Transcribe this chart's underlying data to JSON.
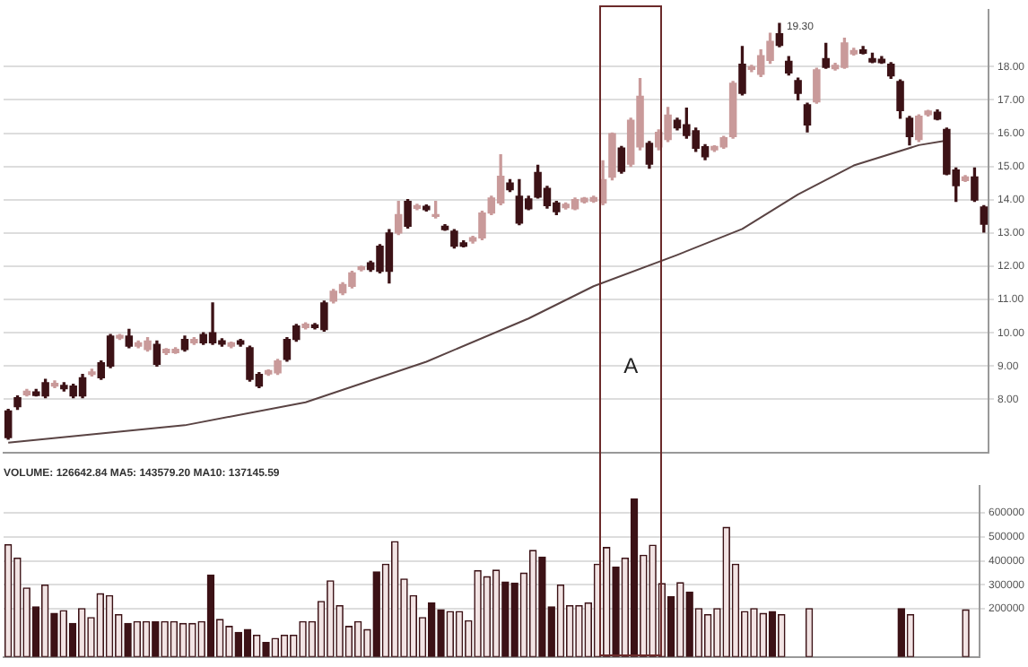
{
  "chart_data": [
    {
      "type": "candlestick",
      "categories": [
        null,
        null,
        null,
        null,
        null,
        null,
        null,
        null,
        null,
        null,
        null,
        null,
        null,
        null,
        null,
        null,
        null,
        null,
        null,
        null,
        null,
        null,
        null,
        null,
        null,
        null,
        null,
        null,
        null,
        null,
        null,
        null,
        null,
        null,
        null,
        null,
        null,
        null,
        null,
        null,
        null,
        null,
        null,
        null,
        null,
        null,
        null,
        null,
        null,
        null,
        null,
        null,
        null,
        null,
        null,
        null,
        null,
        null,
        null,
        null,
        null,
        null,
        null,
        null,
        null,
        null,
        null,
        null,
        null,
        null,
        null,
        null,
        null,
        null,
        null,
        null,
        null,
        null,
        null,
        null,
        null,
        null,
        null,
        null,
        null,
        null,
        null,
        null,
        null,
        null,
        null,
        null,
        null,
        null,
        null,
        null,
        null,
        null,
        null,
        null,
        null,
        null,
        null,
        null,
        null,
        null
      ],
      "ohlc": [
        [
          7.65,
          7.7,
          6.8,
          6.85
        ],
        [
          8.05,
          8.1,
          7.7,
          7.78
        ],
        [
          8.14,
          8.3,
          8.1,
          8.24
        ],
        [
          8.22,
          8.3,
          8.1,
          8.12
        ],
        [
          8.5,
          8.6,
          8.05,
          8.1
        ],
        [
          8.4,
          8.55,
          8.35,
          8.48
        ],
        [
          8.42,
          8.5,
          8.25,
          8.32
        ],
        [
          8.4,
          8.45,
          8.05,
          8.1
        ],
        [
          8.65,
          8.75,
          8.05,
          8.1
        ],
        [
          8.75,
          8.9,
          8.7,
          8.82
        ],
        [
          9.1,
          9.15,
          8.6,
          8.65
        ],
        [
          9.9,
          9.95,
          8.95,
          9.0
        ],
        [
          9.84,
          9.95,
          9.8,
          9.92
        ],
        [
          9.9,
          10.1,
          9.55,
          9.6
        ],
        [
          9.6,
          9.75,
          9.55,
          9.7
        ],
        [
          9.5,
          9.85,
          9.45,
          9.75
        ],
        [
          9.65,
          9.75,
          9.0,
          9.05
        ],
        [
          9.4,
          9.52,
          9.35,
          9.5
        ],
        [
          9.4,
          9.55,
          9.38,
          9.5
        ],
        [
          9.8,
          9.9,
          9.45,
          9.5
        ],
        [
          9.7,
          9.85,
          9.65,
          9.8
        ],
        [
          9.95,
          10.0,
          9.65,
          9.7
        ],
        [
          10.0,
          10.9,
          9.65,
          9.7
        ],
        [
          9.76,
          9.82,
          9.6,
          9.66
        ],
        [
          9.6,
          9.72,
          9.55,
          9.7
        ],
        [
          9.76,
          9.8,
          9.6,
          9.66
        ],
        [
          9.55,
          9.6,
          8.55,
          8.6
        ],
        [
          8.75,
          8.8,
          8.35,
          8.4
        ],
        [
          8.76,
          8.88,
          8.72,
          8.86
        ],
        [
          8.8,
          9.2,
          8.75,
          9.15
        ],
        [
          9.8,
          9.85,
          9.15,
          9.2
        ],
        [
          10.2,
          10.25,
          9.75,
          9.8
        ],
        [
          10.16,
          10.3,
          10.12,
          10.26
        ],
        [
          10.24,
          10.28,
          10.12,
          10.16
        ],
        [
          10.9,
          10.95,
          10.05,
          10.1
        ],
        [
          10.95,
          11.3,
          10.9,
          11.25
        ],
        [
          11.2,
          11.5,
          11.15,
          11.45
        ],
        [
          11.4,
          11.85,
          11.35,
          11.8
        ],
        [
          11.9,
          12.0,
          11.86,
          11.98
        ],
        [
          12.1,
          12.15,
          11.85,
          11.9
        ],
        [
          12.6,
          12.65,
          11.8,
          11.85
        ],
        [
          13.0,
          13.1,
          11.5,
          11.85
        ],
        [
          13.0,
          13.95,
          12.95,
          13.55
        ],
        [
          13.95,
          14.0,
          13.15,
          13.2
        ],
        [
          13.74,
          13.86,
          13.7,
          13.82
        ],
        [
          13.8,
          13.84,
          13.66,
          13.7
        ],
        [
          13.5,
          13.95,
          13.45,
          13.55
        ],
        [
          13.2,
          13.25,
          13.08,
          13.1
        ],
        [
          13.05,
          13.1,
          12.55,
          12.6
        ],
        [
          12.7,
          12.76,
          12.58,
          12.6
        ],
        [
          12.76,
          12.9,
          12.7,
          12.86
        ],
        [
          12.85,
          13.65,
          12.8,
          13.6
        ],
        [
          13.6,
          14.1,
          13.55,
          14.05
        ],
        [
          13.9,
          15.35,
          13.85,
          14.7
        ],
        [
          14.5,
          14.6,
          14.25,
          14.3
        ],
        [
          14.1,
          14.6,
          13.25,
          13.3
        ],
        [
          14.02,
          14.1,
          13.7,
          13.73
        ],
        [
          14.82,
          15.03,
          14.05,
          14.08
        ],
        [
          14.34,
          14.4,
          13.75,
          13.82
        ],
        [
          13.9,
          13.95,
          13.55,
          13.64
        ],
        [
          13.76,
          13.9,
          13.72,
          13.86
        ],
        [
          13.73,
          14.05,
          13.7,
          14.0
        ],
        [
          13.94,
          14.06,
          13.9,
          14.04
        ],
        [
          13.96,
          14.1,
          13.92,
          14.06
        ],
        [
          13.9,
          15.17,
          13.85,
          14.6
        ],
        [
          14.68,
          16.0,
          14.6,
          15.98
        ],
        [
          15.55,
          15.6,
          14.8,
          14.85
        ],
        [
          15.07,
          16.45,
          15.0,
          16.39
        ],
        [
          15.59,
          17.64,
          15.5,
          17.11
        ],
        [
          15.69,
          15.75,
          14.95,
          15.07
        ],
        [
          15.59,
          16.1,
          15.5,
          16.02
        ],
        [
          15.81,
          16.77,
          15.75,
          16.54
        ],
        [
          16.39,
          16.45,
          16.1,
          16.16
        ],
        [
          16.25,
          16.75,
          15.85,
          15.93
        ],
        [
          16.07,
          16.15,
          15.45,
          15.55
        ],
        [
          15.59,
          15.65,
          15.2,
          15.29
        ],
        [
          15.5,
          15.62,
          15.45,
          15.6
        ],
        [
          15.59,
          15.9,
          15.55,
          15.86
        ],
        [
          15.9,
          17.55,
          15.85,
          17.5
        ],
        [
          18.07,
          18.6,
          17.15,
          17.2
        ],
        [
          17.92,
          18.04,
          17.85,
          18.0
        ],
        [
          17.77,
          18.5,
          17.7,
          18.33
        ],
        [
          18.19,
          19.0,
          18.1,
          18.76
        ],
        [
          18.99,
          19.3,
          18.6,
          18.64
        ],
        [
          18.16,
          18.3,
          17.75,
          17.81
        ],
        [
          17.58,
          17.65,
          17.0,
          17.2
        ],
        [
          16.85,
          16.9,
          16.04,
          16.25
        ],
        [
          16.94,
          17.95,
          16.9,
          17.9
        ],
        [
          18.24,
          18.7,
          17.95,
          17.98
        ],
        [
          17.94,
          18.1,
          17.9,
          18.04
        ],
        [
          17.98,
          18.85,
          17.95,
          18.71
        ],
        [
          18.38,
          18.55,
          18.35,
          18.48
        ],
        [
          18.5,
          18.6,
          18.38,
          18.4
        ],
        [
          18.24,
          18.4,
          18.12,
          18.14
        ],
        [
          18.22,
          18.3,
          18.1,
          18.12
        ],
        [
          18.07,
          18.12,
          17.65,
          17.72
        ],
        [
          17.55,
          17.6,
          16.45,
          16.68
        ],
        [
          16.45,
          16.5,
          15.65,
          15.9
        ],
        [
          15.81,
          16.55,
          15.75,
          16.51
        ],
        [
          16.56,
          16.68,
          16.52,
          16.66
        ],
        [
          16.63,
          16.7,
          16.4,
          16.42
        ],
        [
          16.11,
          16.15,
          14.75,
          14.77
        ],
        [
          14.89,
          14.95,
          13.95,
          14.42
        ],
        [
          14.58,
          14.72,
          14.55,
          14.68
        ],
        [
          14.68,
          14.95,
          13.95,
          13.99
        ],
        [
          13.78,
          13.82,
          13.03,
          13.26
        ]
      ],
      "colors": [
        "#3c1216",
        "#3c1216",
        "#c99a9a",
        "#3c1216",
        "#3c1216",
        "#c99a9a",
        "#3c1216",
        "#3c1216",
        "#3c1216",
        "#c99a9a",
        "#3c1216",
        "#3c1216",
        "#c99a9a",
        "#3c1216",
        "#c99a9a",
        "#c99a9a",
        "#3c1216",
        "#c99a9a",
        "#c99a9a",
        "#3c1216",
        "#c99a9a",
        "#3c1216",
        "#3c1216",
        "#3c1216",
        "#c99a9a",
        "#3c1216",
        "#3c1216",
        "#3c1216",
        "#c99a9a",
        "#c99a9a",
        "#3c1216",
        "#3c1216",
        "#c99a9a",
        "#3c1216",
        "#3c1216",
        "#c99a9a",
        "#c99a9a",
        "#c99a9a",
        "#c99a9a",
        "#3c1216",
        "#3c1216",
        "#3c1216",
        "#c99a9a",
        "#3c1216",
        "#c99a9a",
        "#3c1216",
        "#c99a9a",
        "#3c1216",
        "#3c1216",
        "#3c1216",
        "#c99a9a",
        "#c99a9a",
        "#c99a9a",
        "#c99a9a",
        "#3c1216",
        "#3c1216",
        "#3c1216",
        "#3c1216",
        "#3c1216",
        "#3c1216",
        "#c99a9a",
        "#c99a9a",
        "#c99a9a",
        "#c99a9a",
        "#c99a9a",
        "#c99a9a",
        "#3c1216",
        "#c99a9a",
        "#c99a9a",
        "#3c1216",
        "#c99a9a",
        "#c99a9a",
        "#3c1216",
        "#3c1216",
        "#3c1216",
        "#3c1216",
        "#c99a9a",
        "#c99a9a",
        "#c99a9a",
        "#3c1216",
        "#c99a9a",
        "#c99a9a",
        "#c99a9a",
        "#3c1216",
        "#3c1216",
        "#3c1216",
        "#3c1216",
        "#c99a9a",
        "#3c1216",
        "#c99a9a",
        "#c99a9a",
        "#c99a9a",
        "#3c1216",
        "#3c1216",
        "#3c1216",
        "#3c1216",
        "#3c1216",
        "#3c1216",
        "#c99a9a",
        "#c99a9a",
        "#3c1216",
        "#3c1216",
        "#3c1216",
        "#c99a9a",
        "#3c1216",
        "#3c1216"
      ],
      "series": [
        {
          "type": "line",
          "color": "#5a4444",
          "values": [
            6.7,
            null,
            null,
            null,
            null,
            null,
            null,
            null,
            null,
            null,
            null,
            null,
            null,
            null,
            null,
            null,
            null,
            null,
            null,
            7.22,
            null,
            null,
            null,
            null,
            null,
            null,
            null,
            null,
            null,
            null,
            null,
            null,
            7.91,
            null,
            null,
            null,
            null,
            null,
            null,
            null,
            null,
            null,
            null,
            null,
            null,
            9.13,
            null,
            null,
            null,
            null,
            null,
            null,
            null,
            null,
            null,
            null,
            10.43,
            null,
            null,
            null,
            null,
            null,
            null,
            11.4,
            null,
            null,
            null,
            null,
            null,
            null,
            null,
            null,
            12.34,
            null,
            null,
            null,
            null,
            null,
            null,
            13.12,
            null,
            null,
            null,
            null,
            null,
            14.16,
            null,
            null,
            null,
            null,
            null,
            15.03,
            null,
            null,
            null,
            null,
            null,
            null,
            15.64,
            null,
            null,
            15.78,
            null,
            null,
            null,
            null
          ]
        }
      ],
      "marker": "none",
      "ylim": [
        6.4,
        19.7
      ],
      "yticks": [
        {
          "value": 8,
          "label": "8.00"
        },
        {
          "value": 9,
          "label": "9.00"
        },
        {
          "value": 10,
          "label": "10.00"
        },
        {
          "value": 11,
          "label": "11.00"
        },
        {
          "value": 12,
          "label": "12.00"
        },
        {
          "value": 13,
          "label": "13.00"
        },
        {
          "value": 14,
          "label": "14.00"
        },
        {
          "value": 15,
          "label": "15.00"
        },
        {
          "value": 16,
          "label": "16.00"
        },
        {
          "value": 17,
          "label": "17.00"
        },
        {
          "value": 18,
          "label": "18.00"
        }
      ],
      "tick_labels": "y",
      "grid": "y",
      "annotations": [
        "A",
        "19.30"
      ]
    },
    {
      "type": "bar",
      "title": "VOLUME: 126642.84 MA5: 143579.20 MA10: 137145.59",
      "color": "#3c1216",
      "categories": [
        null,
        null,
        null,
        null,
        null,
        null,
        null,
        null,
        null,
        null,
        null,
        null,
        null,
        null,
        null,
        null,
        null,
        null,
        null,
        null,
        null,
        null,
        null,
        null,
        null,
        null,
        null,
        null,
        null,
        null,
        null,
        null,
        null,
        null,
        null,
        null,
        null,
        null,
        null,
        null,
        null,
        null,
        null,
        null,
        null,
        null,
        null,
        null,
        null,
        null,
        null,
        null,
        null,
        null,
        null,
        null,
        null,
        null,
        null,
        null,
        null,
        null,
        null,
        null,
        null,
        null,
        null,
        null,
        null,
        null,
        null,
        null,
        null,
        null,
        null,
        null,
        null,
        null,
        null,
        null,
        null,
        null,
        null,
        null,
        null,
        null,
        null,
        null,
        null,
        null,
        null,
        null,
        null,
        null,
        null,
        null,
        null,
        null,
        null,
        null,
        null,
        null,
        null,
        null,
        null,
        null
      ],
      "values": [
        467000,
        411000,
        287000,
        208000,
        299000,
        181000,
        193000,
        139000,
        201000,
        164000,
        263000,
        255000,
        176000,
        139000,
        147000,
        147000,
        147000,
        147000,
        147000,
        139000,
        139000,
        147000,
        341000,
        156000,
        127000,
        102000,
        114000,
        90000,
        60000,
        77000,
        90000,
        90000,
        147000,
        147000,
        231000,
        317000,
        213000,
        127000,
        147000,
        114000,
        354000,
        386000,
        480000,
        324000,
        255000,
        164000,
        225000,
        196000,
        189000,
        189000,
        151000,
        359000,
        334000,
        361000,
        312000,
        307000,
        349000,
        443000,
        415000,
        208000,
        299000,
        213000,
        213000,
        225000,
        386000,
        455000,
        373000,
        411000,
        657000,
        423000,
        465000,
        305000,
        250000,
        309000,
        270000,
        201000,
        176000,
        201000,
        539000,
        386000,
        189000,
        201000,
        181000,
        189000,
        176000,
        null,
        null,
        201000,
        null,
        null,
        null,
        null,
        null,
        null,
        null,
        null,
        null,
        201000,
        176000,
        null,
        null,
        null,
        null,
        null,
        196000,
        null
      ],
      "colors": [
        "#f2e4e4",
        "#f2e4e4",
        "#f2e4e4",
        "#3c1216",
        "#f2e4e4",
        "#3c1216",
        "#f2e4e4",
        "#3c1216",
        "#f2e4e4",
        "#f2e4e4",
        "#f2e4e4",
        "#f2e4e4",
        "#f2e4e4",
        "#3c1216",
        "#f2e4e4",
        "#f2e4e4",
        "#3c1216",
        "#f2e4e4",
        "#f2e4e4",
        "#f2e4e4",
        "#f2e4e4",
        "#f2e4e4",
        "#3c1216",
        "#f2e4e4",
        "#f2e4e4",
        "#3c1216",
        "#3c1216",
        "#f2e4e4",
        "#3c1216",
        "#f2e4e4",
        "#f2e4e4",
        "#f2e4e4",
        "#f2e4e4",
        "#f2e4e4",
        "#f2e4e4",
        "#f2e4e4",
        "#f2e4e4",
        "#f2e4e4",
        "#f2e4e4",
        "#f2e4e4",
        "#3c1216",
        "#f2e4e4",
        "#f2e4e4",
        "#f2e4e4",
        "#f2e4e4",
        "#f2e4e4",
        "#3c1216",
        "#3c1216",
        "#f2e4e4",
        "#f2e4e4",
        "#f2e4e4",
        "#f2e4e4",
        "#f2e4e4",
        "#f2e4e4",
        "#3c1216",
        "#3c1216",
        "#f2e4e4",
        "#f2e4e4",
        "#3c1216",
        "#3c1216",
        "#f2e4e4",
        "#f2e4e4",
        "#f2e4e4",
        "#f2e4e4",
        "#f2e4e4",
        "#f2e4e4",
        "#3c1216",
        "#f2e4e4",
        "#3c1216",
        "#f2e4e4",
        "#f2e4e4",
        "#f2e4e4",
        "#3c1216",
        "#f2e4e4",
        "#3c1216",
        "#f2e4e4",
        "#f2e4e4",
        "#f2e4e4",
        "#f2e4e4",
        "#f2e4e4",
        "#f2e4e4",
        "#f2e4e4",
        "#f2e4e4",
        "#3c1216",
        "#f2e4e4",
        "#f2e4e4",
        "#f2e4e4",
        "#f2e4e4",
        "#f2e4e4",
        "#f2e4e4",
        "#f2e4e4",
        "#f2e4e4",
        "#f2e4e4",
        "#f2e4e4",
        "#f2e4e4",
        "#f2e4e4",
        "#f2e4e4",
        "#3c1216",
        "#f2e4e4",
        "#f2e4e4",
        "#f2e4e4",
        "#f2e4e4",
        "#f2e4e4",
        "#f2e4e4",
        "#f2e4e4",
        "#f2e4e4"
      ],
      "ylim": [
        0,
        710000
      ],
      "yticks": [
        200000,
        300000,
        400000,
        500000,
        600000
      ],
      "tick_labels": "y",
      "grid": "y"
    }
  ]
}
